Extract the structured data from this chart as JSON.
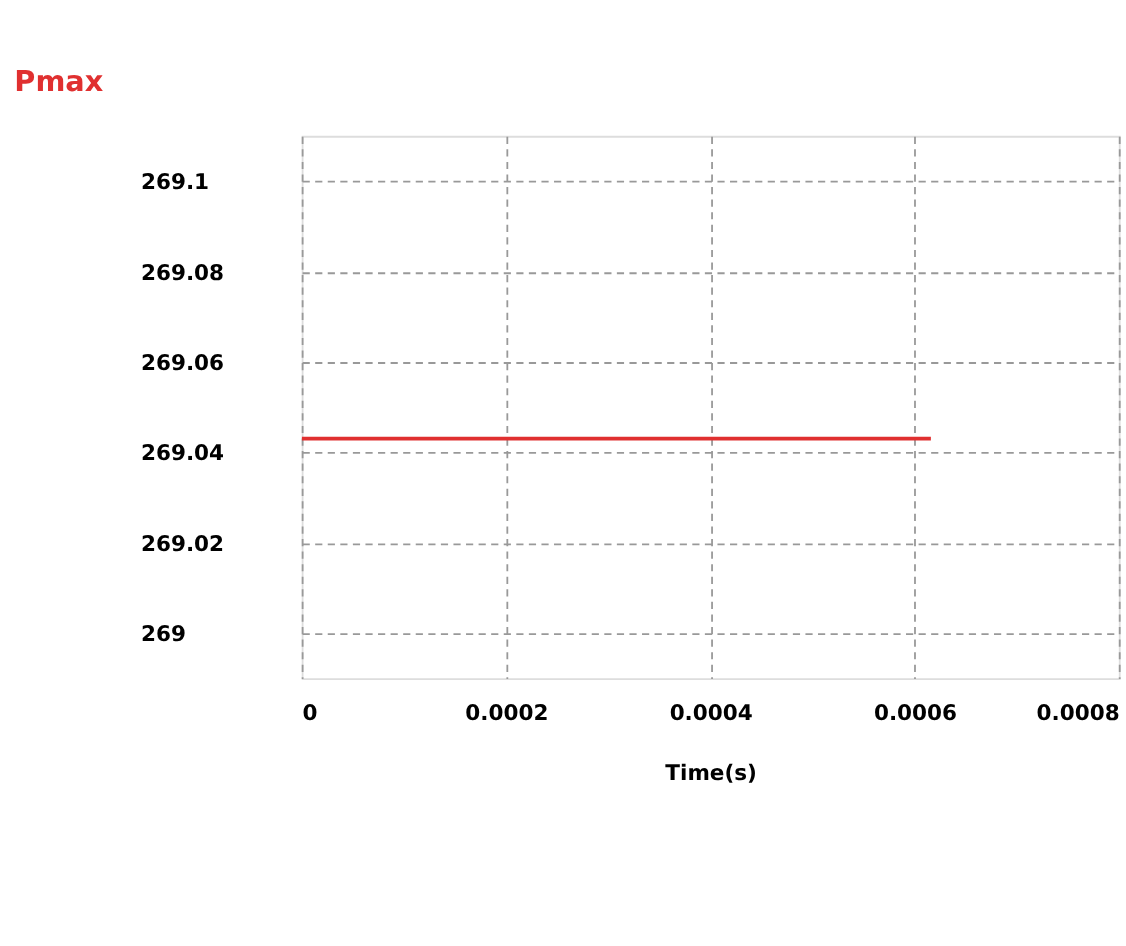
{
  "chart_data": {
    "type": "line",
    "title": "Pmax",
    "xlabel": "Time(s)",
    "series": [
      {
        "color": "#e03030",
        "x": [
          0,
          0.000616
        ],
        "values": [
          269.043,
          269.043
        ]
      }
    ],
    "xlim": [
      0,
      0.0008
    ],
    "xticks": [
      0,
      0.0002,
      0.0004,
      0.0006,
      0.0008
    ],
    "ylim": [
      268.99,
      269.11
    ],
    "yticks": [
      269,
      269.02,
      269.04,
      269.06,
      269.08,
      269.1
    ],
    "grid": true,
    "line_style": "solid",
    "marker": "none"
  }
}
